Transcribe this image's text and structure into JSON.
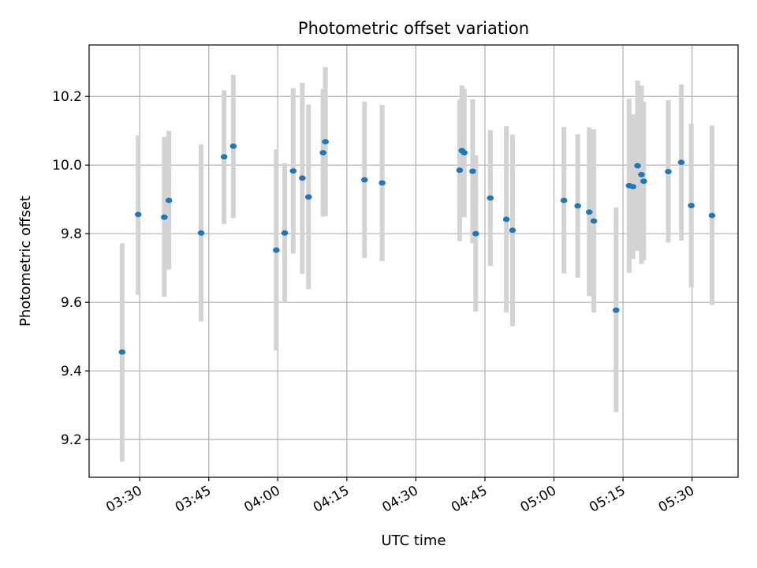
{
  "chart_data": {
    "type": "scatter",
    "title": "Photometric offset variation",
    "xlabel": "UTC time",
    "ylabel": "Photometric offset",
    "x_unit": "UTC time (HH:MM)",
    "xlim": [
      "03:19",
      "05:40"
    ],
    "ylim": [
      9.09,
      10.35
    ],
    "x_ticks": [
      "03:30",
      "03:45",
      "04:00",
      "04:15",
      "04:30",
      "04:45",
      "05:00",
      "05:15",
      "05:30"
    ],
    "y_ticks": [
      9.2,
      9.4,
      9.6,
      9.8,
      10.0,
      10.2
    ],
    "y_tick_labels": [
      "9.2",
      "9.4",
      "9.6",
      "9.8",
      "10.0",
      "10.2"
    ],
    "grid": true,
    "colors": {
      "point": "#1f77b4",
      "errorbar": "#d3d3d3",
      "grid": "#b0b0b0"
    },
    "points": [
      {
        "x": "03:26:10",
        "y": 9.455,
        "y_low": 9.135,
        "y_high": 9.772
      },
      {
        "x": "03:29:40",
        "y": 9.856,
        "y_low": 9.622,
        "y_high": 10.087
      },
      {
        "x": "03:35:20",
        "y": 9.848,
        "y_low": 9.616,
        "y_high": 10.082
      },
      {
        "x": "03:36:20",
        "y": 9.897,
        "y_low": 9.695,
        "y_high": 10.1
      },
      {
        "x": "03:43:20",
        "y": 9.802,
        "y_low": 9.544,
        "y_high": 10.06
      },
      {
        "x": "03:48:20",
        "y": 10.024,
        "y_low": 9.828,
        "y_high": 10.218
      },
      {
        "x": "03:50:20",
        "y": 10.055,
        "y_low": 9.845,
        "y_high": 10.263
      },
      {
        "x": "03:59:40",
        "y": 9.752,
        "y_low": 9.459,
        "y_high": 10.046
      },
      {
        "x": "04:01:30",
        "y": 9.802,
        "y_low": 9.6,
        "y_high": 10.005
      },
      {
        "x": "04:03:20",
        "y": 9.983,
        "y_low": 9.742,
        "y_high": 10.224
      },
      {
        "x": "04:05:20",
        "y": 9.962,
        "y_low": 9.683,
        "y_high": 10.24
      },
      {
        "x": "04:06:40",
        "y": 9.907,
        "y_low": 9.638,
        "y_high": 10.176
      },
      {
        "x": "04:09:50",
        "y": 10.036,
        "y_low": 9.85,
        "y_high": 10.222
      },
      {
        "x": "04:10:20",
        "y": 10.068,
        "y_low": 9.851,
        "y_high": 10.286
      },
      {
        "x": "04:18:50",
        "y": 9.957,
        "y_low": 9.729,
        "y_high": 10.185
      },
      {
        "x": "04:22:40",
        "y": 9.948,
        "y_low": 9.72,
        "y_high": 10.175
      },
      {
        "x": "04:39:30",
        "y": 9.985,
        "y_low": 9.778,
        "y_high": 10.19
      },
      {
        "x": "04:40:00",
        "y": 10.042,
        "y_low": 9.853,
        "y_high": 10.232
      },
      {
        "x": "04:40:30",
        "y": 10.036,
        "y_low": 9.848,
        "y_high": 10.222
      },
      {
        "x": "04:42:20",
        "y": 9.982,
        "y_low": 9.772,
        "y_high": 10.192
      },
      {
        "x": "04:43:00",
        "y": 9.8,
        "y_low": 9.573,
        "y_high": 10.028
      },
      {
        "x": "04:46:10",
        "y": 9.904,
        "y_low": 9.706,
        "y_high": 10.102
      },
      {
        "x": "04:49:40",
        "y": 9.842,
        "y_low": 9.57,
        "y_high": 10.113
      },
      {
        "x": "04:51:00",
        "y": 9.81,
        "y_low": 9.53,
        "y_high": 10.089
      },
      {
        "x": "05:02:10",
        "y": 9.897,
        "y_low": 9.684,
        "y_high": 10.111
      },
      {
        "x": "05:05:10",
        "y": 9.881,
        "y_low": 9.672,
        "y_high": 10.09
      },
      {
        "x": "05:07:40",
        "y": 9.863,
        "y_low": 9.618,
        "y_high": 10.11
      },
      {
        "x": "05:08:40",
        "y": 9.837,
        "y_low": 9.57,
        "y_high": 10.104
      },
      {
        "x": "05:13:30",
        "y": 9.577,
        "y_low": 9.28,
        "y_high": 9.876
      },
      {
        "x": "05:16:20",
        "y": 9.94,
        "y_low": 9.686,
        "y_high": 10.193
      },
      {
        "x": "05:17:10",
        "y": 9.937,
        "y_low": 9.726,
        "y_high": 10.148
      },
      {
        "x": "05:18:10",
        "y": 9.998,
        "y_low": 9.75,
        "y_high": 10.246
      },
      {
        "x": "05:19:00",
        "y": 9.972,
        "y_low": 9.712,
        "y_high": 10.232
      },
      {
        "x": "05:19:30",
        "y": 9.953,
        "y_low": 9.722,
        "y_high": 10.184
      },
      {
        "x": "05:24:50",
        "y": 9.981,
        "y_low": 9.774,
        "y_high": 10.189
      },
      {
        "x": "05:27:40",
        "y": 10.008,
        "y_low": 9.78,
        "y_high": 10.235
      },
      {
        "x": "05:29:50",
        "y": 9.882,
        "y_low": 9.643,
        "y_high": 10.121
      },
      {
        "x": "05:34:20",
        "y": 9.853,
        "y_low": 9.592,
        "y_high": 10.115
      }
    ]
  }
}
